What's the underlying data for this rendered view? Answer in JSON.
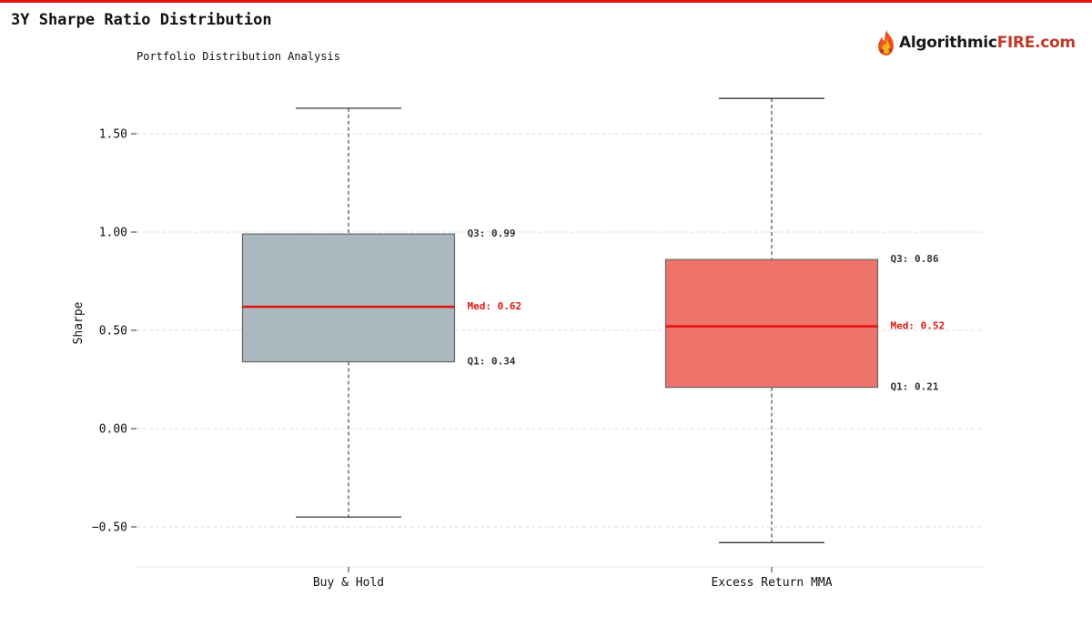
{
  "title": "3Y Sharpe Ratio Distribution",
  "subtitle": "Portfolio Distribution Analysis",
  "brand": {
    "name_main": "Algorithmic",
    "name_accent": "FIRE.com",
    "icon": "flame-logo-icon"
  },
  "colors": {
    "accent": "#e3120b",
    "median": "#e3120b",
    "grid": "#dddddd"
  },
  "chart_data": {
    "type": "box",
    "title": "3Y Sharpe Ratio Distribution",
    "subtitle": "Portfolio Distribution Analysis",
    "ylabel": "Sharpe",
    "xlabel": "",
    "ylim": [
      -0.7,
      1.78
    ],
    "yticks": [
      -0.5,
      0.0,
      0.5,
      1.0,
      1.5
    ],
    "ytick_labels": [
      "−0.50",
      "0.00",
      "0.50",
      "1.00",
      "1.50"
    ],
    "grid": true,
    "categories": [
      "Buy & Hold",
      "Excess Return MMA"
    ],
    "series": [
      {
        "category": "Buy & Hold",
        "whisker_low": -0.45,
        "q1": 0.34,
        "median": 0.62,
        "q3": 0.99,
        "whisker_high": 1.63,
        "color": "#aab9c0",
        "labels": {
          "q3": "Q3: 0.99",
          "median": "Med: 0.62",
          "q1": "Q1: 0.34"
        }
      },
      {
        "category": "Excess Return MMA",
        "whisker_low": -0.58,
        "q1": 0.21,
        "median": 0.52,
        "q3": 0.86,
        "whisker_high": 1.68,
        "color": "#ee736b",
        "labels": {
          "q3": "Q3: 0.86",
          "median": "Med: 0.52",
          "q1": "Q1: 0.21"
        }
      }
    ]
  }
}
